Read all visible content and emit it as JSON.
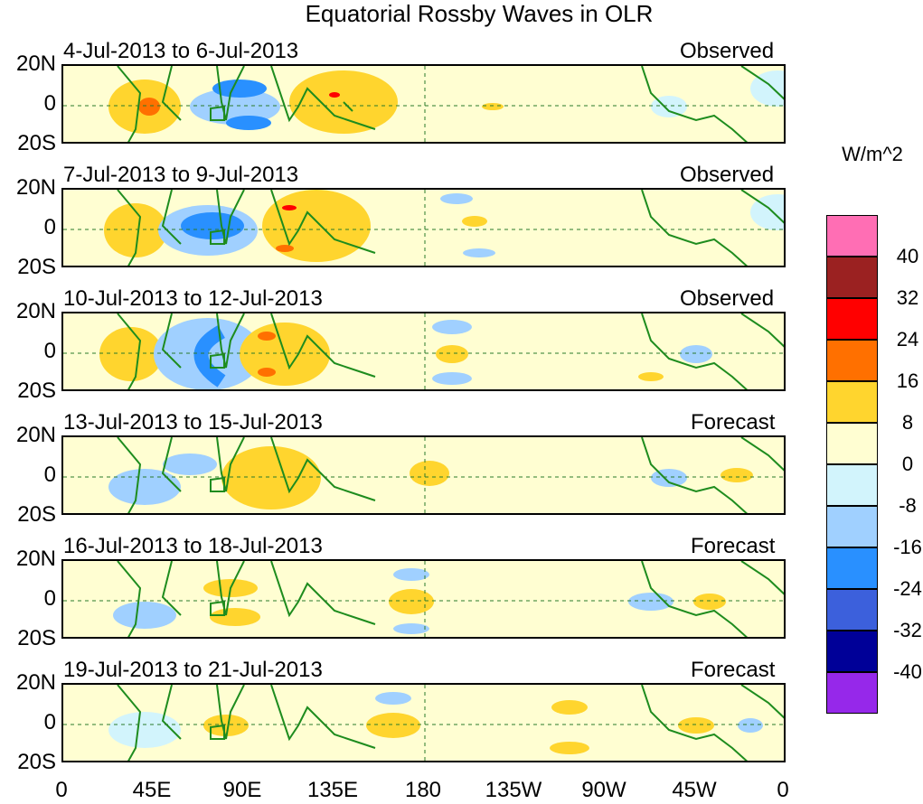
{
  "title": "Equatorial Rossby Waves in OLR",
  "panels": [
    {
      "period": "4-Jul-2013 to 6-Jul-2013",
      "status": "Observed"
    },
    {
      "period": "7-Jul-2013 to 9-Jul-2013",
      "status": "Observed"
    },
    {
      "period": "10-Jul-2013 to 12-Jul-2013",
      "status": "Observed"
    },
    {
      "period": "13-Jul-2013 to 15-Jul-2013",
      "status": "Forecast"
    },
    {
      "period": "16-Jul-2013 to 18-Jul-2013",
      "status": "Forecast"
    },
    {
      "period": "19-Jul-2013 to 21-Jul-2013",
      "status": "Forecast"
    }
  ],
  "y_labels": {
    "north": "20N",
    "eq": "0",
    "south": "20S"
  },
  "x_labels": [
    "0",
    "45E",
    "90E",
    "135E",
    "180",
    "135W",
    "90W",
    "45W",
    "0"
  ],
  "colorbar": {
    "units": "W/m^2",
    "levels": [
      "40",
      "32",
      "24",
      "16",
      "8",
      "0",
      "-8",
      "-16",
      "-24",
      "-32",
      "-40"
    ],
    "colors": [
      "#ff6eb4",
      "#9b2121",
      "#ff0000",
      "#ff7000",
      "#ffd52e",
      "#fffed2",
      "#d2f4fc",
      "#a0d0ff",
      "#2990ff",
      "#3c60dc",
      "#000098",
      "#9628ea"
    ]
  },
  "map_colors": {
    "coast": "#1e8c1e",
    "equator": "#2a7a2a"
  }
}
